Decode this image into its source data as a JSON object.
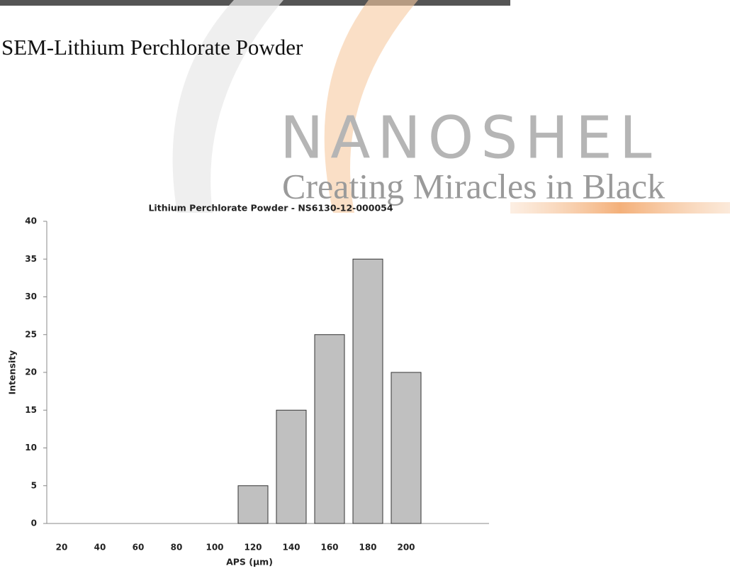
{
  "header": {
    "title": "SEM-Lithium Perchlorate Powder"
  },
  "watermark": {
    "brand": "NANOSHEL",
    "tagline": "Creating Miracles in Black"
  },
  "chart_data": {
    "type": "bar",
    "title": "Lithium Perchlorate Powder - NS6130-12-000054",
    "x_label": "APS (µm)",
    "y_label": "Intensity",
    "categories": [
      "20",
      "40",
      "60",
      "80",
      "100",
      "120",
      "140",
      "160",
      "180",
      "200"
    ],
    "values": [
      0,
      0,
      0,
      0,
      0,
      5,
      15,
      25,
      35,
      20
    ],
    "color": "#c0c0c0",
    "ylim": [
      0,
      40
    ],
    "yticks": [
      0,
      5,
      10,
      15,
      20,
      25,
      30,
      35,
      40
    ],
    "grid": false
  }
}
